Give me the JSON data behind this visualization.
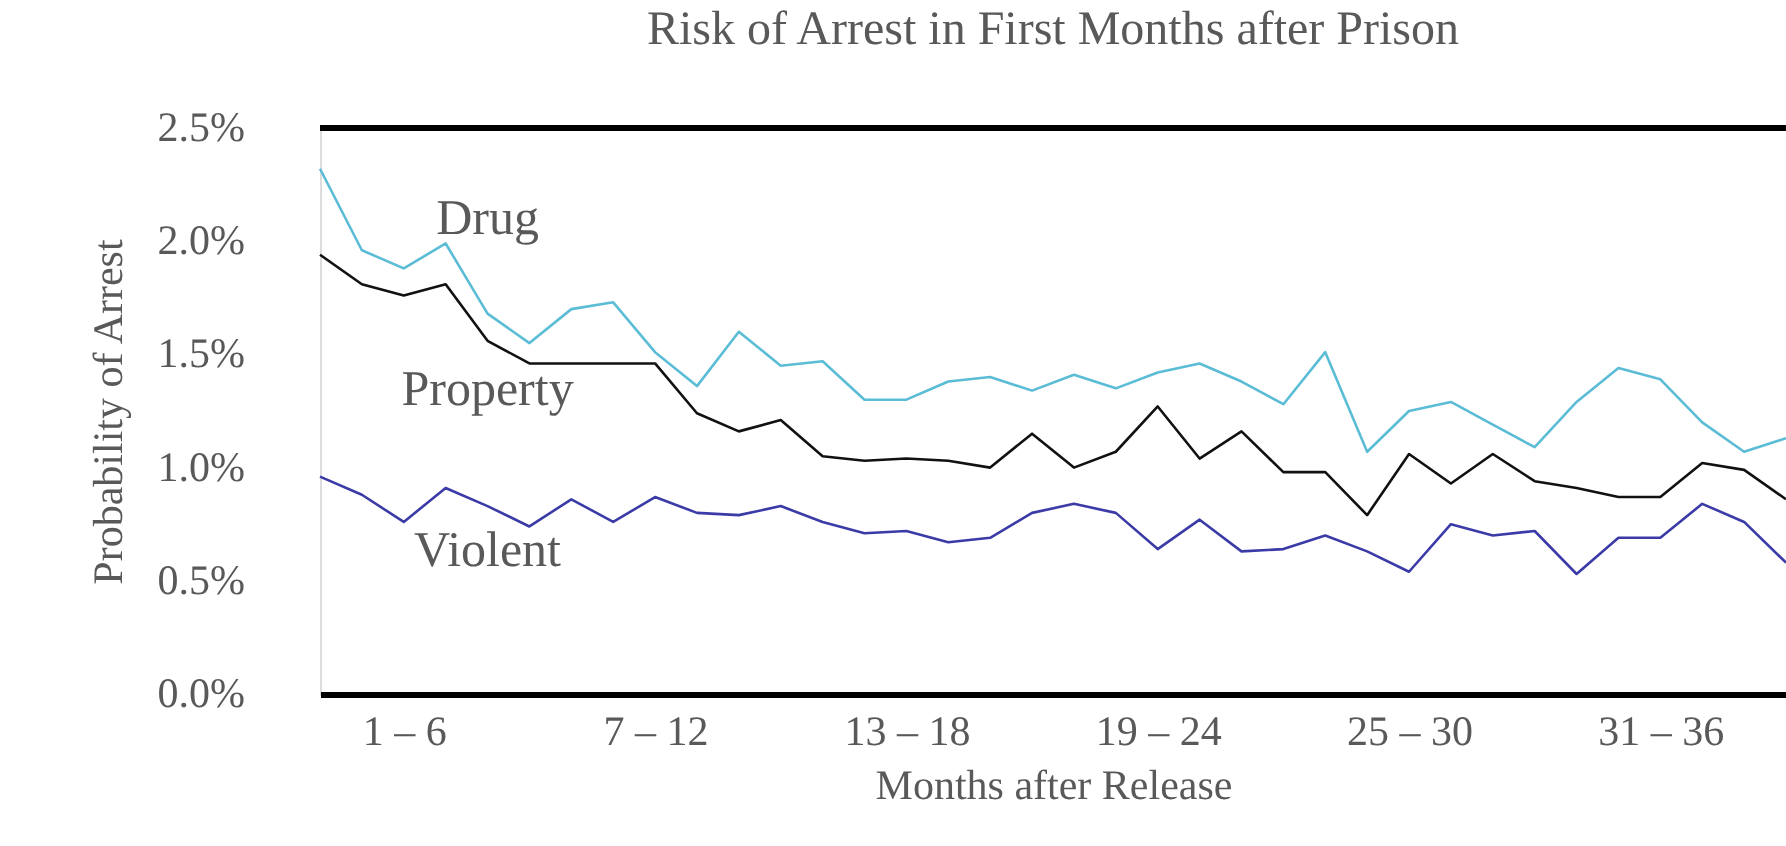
{
  "chart_data": {
    "type": "line",
    "title": "Risk of Arrest in First Months after Prison",
    "xlabel": "Months after Release",
    "ylabel": "Probability of Arrest",
    "categories": [
      null,
      null,
      "1 – 6",
      null,
      null,
      null,
      null,
      null,
      "7 – 12",
      null,
      null,
      null,
      null,
      null,
      "13 – 18",
      null,
      null,
      null,
      null,
      null,
      "19 – 24",
      null,
      null,
      null,
      null,
      null,
      "25 – 30",
      null,
      null,
      null,
      null,
      null,
      "31 – 36",
      null,
      null,
      null
    ],
    "ylim": [
      0,
      2.5
    ],
    "yticks": [
      {
        "value": 0,
        "label": "0.0%"
      },
      {
        "value": 0.5,
        "label": "0.5%"
      },
      {
        "value": 1.0,
        "label": "1.0%"
      },
      {
        "value": 1.5,
        "label": "1.5%"
      },
      {
        "value": 2.0,
        "label": "2.0%"
      },
      {
        "value": 2.5,
        "label": "2.5%"
      }
    ],
    "grid": false,
    "legend": false,
    "marker": "none",
    "line_style": "solid",
    "series": [
      {
        "name": "Drug",
        "color": "#5bbcd6",
        "values": [
          2.32,
          1.96,
          1.88,
          1.99,
          1.68,
          1.55,
          1.7,
          1.73,
          1.51,
          1.36,
          1.6,
          1.45,
          1.47,
          1.3,
          1.3,
          1.38,
          1.4,
          1.34,
          1.41,
          1.35,
          1.42,
          1.46,
          1.38,
          1.28,
          1.51,
          1.07,
          1.25,
          1.29,
          1.19,
          1.09,
          1.29,
          1.44,
          1.39,
          1.2,
          1.07,
          1.13
        ]
      },
      {
        "name": "Property",
        "color": "#111111",
        "values": [
          1.94,
          1.81,
          1.76,
          1.81,
          1.56,
          1.46,
          1.46,
          1.46,
          1.46,
          1.24,
          1.16,
          1.21,
          1.05,
          1.03,
          1.04,
          1.03,
          1.0,
          1.15,
          1.0,
          1.07,
          1.27,
          1.04,
          1.16,
          0.98,
          0.98,
          0.79,
          1.06,
          0.93,
          1.06,
          0.94,
          0.91,
          0.87,
          0.87,
          1.02,
          0.99,
          0.86
        ]
      },
      {
        "name": "Violent",
        "color": "#3b3ba8",
        "values": [
          0.96,
          0.88,
          0.76,
          0.91,
          0.83,
          0.74,
          0.86,
          0.76,
          0.87,
          0.8,
          0.79,
          0.83,
          0.76,
          0.71,
          0.72,
          0.67,
          0.69,
          0.8,
          0.84,
          0.8,
          0.64,
          0.77,
          0.63,
          0.64,
          0.7,
          0.63,
          0.54,
          0.75,
          0.7,
          0.72,
          0.53,
          0.69,
          0.69,
          0.84,
          0.76,
          0.58
        ]
      }
    ]
  }
}
